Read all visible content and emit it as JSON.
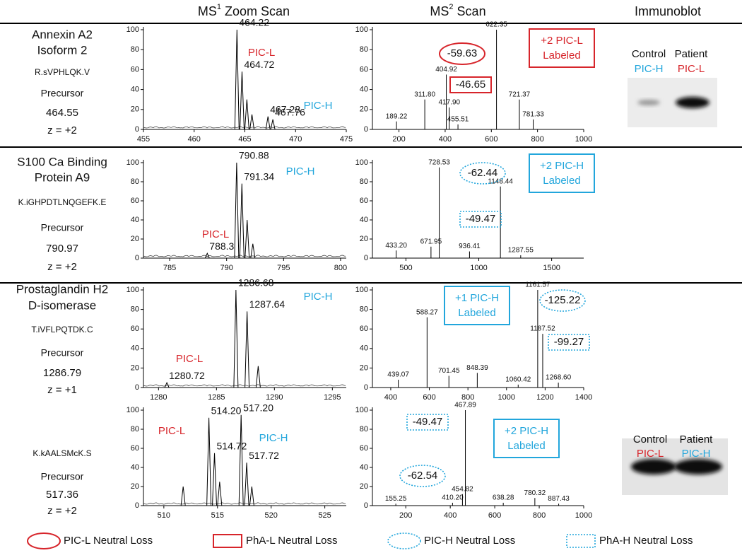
{
  "headers": [
    {
      "text": "MS",
      "sup": "1",
      "rest": "Zoom Scan"
    },
    {
      "text": "MS",
      "sup": "2",
      "rest": "Scan"
    },
    {
      "text": "Immunoblot"
    }
  ],
  "rows": [
    {
      "protein": [
        "Annexin A2",
        "Isoform 2"
      ],
      "peptide": "R.sVPHLQK.V",
      "precursor_label": "Precursor",
      "precursor": "464.55",
      "charge": "z = +2"
    },
    {
      "protein": [
        "S100 Ca Binding",
        "Protein A9"
      ],
      "peptide": "K.iGHPDTLNQGEFK.E",
      "precursor_label": "Precursor",
      "precursor": "790.97",
      "charge": "z = +2"
    },
    {
      "protein": [
        "Prostaglandin H2",
        "D-isomerase"
      ],
      "peptide": "T.iVFLPQTDK.C",
      "precursor_label": "Precursor",
      "precursor": "1286.79",
      "charge": "z = +1"
    },
    {
      "protein": [],
      "peptide": "K.kAALSMcK.S",
      "precursor_label": "Precursor",
      "precursor": "517.36",
      "charge": "z = +2"
    }
  ],
  "immunoblots": [
    {
      "labels": [
        "Control",
        "Patient"
      ],
      "groups": [
        {
          "text": "PIC-H",
          "color": "#22a6dc"
        },
        {
          "text": "PIC-L",
          "color": "#d7252b"
        }
      ]
    },
    {
      "labels": [
        "Control",
        "Patient"
      ],
      "groups": [
        {
          "text": "PIC-L",
          "color": "#d7252b"
        },
        {
          "text": "PIC-H",
          "color": "#22a6dc"
        }
      ]
    }
  ],
  "legend": [
    {
      "label": "PIC-L Neutral Loss",
      "shape": "ellipse",
      "color": "#d7252b"
    },
    {
      "label": "PhA-L Neutral Loss",
      "shape": "rect",
      "color": "#d7252b"
    },
    {
      "label": "PIC-H Neutral Loss",
      "shape": "dotted-ellipse",
      "color": "#22a6dc"
    },
    {
      "label": "PhA-H Neutral Loss",
      "shape": "dotted-rect",
      "color": "#22a6dc"
    }
  ],
  "chart_data": [
    {
      "type": "profile",
      "color": "#000000",
      "xlim": [
        455,
        475
      ],
      "xticks": [
        455,
        460,
        465,
        470,
        475
      ],
      "ylim": [
        0,
        100
      ],
      "yticks": [
        0,
        20,
        40,
        60,
        80,
        100
      ],
      "x": [
        464.22,
        464.72,
        465.2,
        465.7,
        467.28,
        467.76
      ],
      "values": [
        100,
        58,
        30,
        15,
        13,
        10
      ],
      "peak_labels": [
        "464.22",
        "464.72",
        null,
        null,
        "467.28",
        "467.76"
      ],
      "annotations": [
        {
          "text": "PIC-L",
          "color": "#d7252b",
          "shape": "none"
        },
        {
          "text": "PIC-H",
          "color": "#22a6dc",
          "shape": "none"
        }
      ]
    },
    {
      "type": "centroid",
      "color": "#000000",
      "xlim": [
        85,
        1000
      ],
      "xticks": [
        200,
        400,
        600,
        800,
        1000
      ],
      "ylim": [
        0,
        100
      ],
      "yticks": [
        0,
        20,
        40,
        60,
        80,
        100
      ],
      "x": [
        189.22,
        311.8,
        404.92,
        417.9,
        455.51,
        622.35,
        721.37,
        781.33
      ],
      "values": [
        8,
        30,
        55,
        22,
        5,
        100,
        30,
        10
      ],
      "peak_labels": [
        "189.22",
        "311.80",
        "404.92",
        "417.90",
        "455.51",
        "622.35",
        "721.37",
        "781.33"
      ],
      "annotations": [
        {
          "text": "-59.63",
          "color": "#d7252b",
          "shape": "ellipse"
        },
        {
          "text": "-46.65",
          "color": "#d7252b",
          "shape": "rect"
        },
        {
          "lines": [
            "+2 PIC-L",
            "Labeled"
          ],
          "color": "#d7252b",
          "shape": "box"
        }
      ]
    },
    {
      "type": "profile",
      "color": "#000000",
      "xlim": [
        782.7,
        800.5
      ],
      "xticks": [
        785,
        790,
        795,
        800
      ],
      "ylim": [
        0,
        100
      ],
      "yticks": [
        0,
        20,
        40,
        60,
        80,
        100
      ],
      "x": [
        788.3,
        790.88,
        791.34,
        791.8,
        792.3
      ],
      "values": [
        5,
        100,
        78,
        40,
        15
      ],
      "peak_labels": [
        "788.3",
        "790.88",
        "791.34",
        null,
        null
      ],
      "annotations": [
        {
          "text": "PIC-H",
          "color": "#22a6dc",
          "shape": "none"
        },
        {
          "text": "PIC-L",
          "color": "#d7252b",
          "shape": "none"
        }
      ]
    },
    {
      "type": "centroid",
      "color": "#000000",
      "xlim": [
        270,
        1720
      ],
      "xticks": [
        500,
        1000,
        1500
      ],
      "ylim": [
        0,
        100
      ],
      "yticks": [
        0,
        20,
        40,
        60,
        80,
        100
      ],
      "x": [
        433.2,
        671.95,
        728.53,
        936.41,
        1148.44,
        1287.55
      ],
      "values": [
        8,
        12,
        95,
        7,
        75,
        3
      ],
      "peak_labels": [
        "433.20",
        "671.95",
        "728.53",
        "936.41",
        "1148.44",
        "1287.55"
      ],
      "annotations": [
        {
          "text": "-62.44",
          "color": "#22a6dc",
          "shape": "dotted-ellipse"
        },
        {
          "text": "-49.47",
          "color": "#22a6dc",
          "shape": "dotted-rect"
        },
        {
          "lines": [
            "+2 PIC-H",
            "Labeled"
          ],
          "color": "#22a6dc",
          "shape": "box"
        }
      ]
    },
    {
      "type": "profile",
      "color": "#000000",
      "xlim": [
        1278.7,
        1296.2
      ],
      "xticks": [
        1280,
        1285,
        1290,
        1295
      ],
      "ylim": [
        0,
        100
      ],
      "yticks": [
        0,
        20,
        40,
        60,
        80,
        100
      ],
      "x": [
        1280.72,
        1286.68,
        1287.64,
        1288.6
      ],
      "values": [
        5,
        100,
        78,
        22
      ],
      "peak_labels": [
        "1280.72",
        "1286.68",
        "1287.64",
        null
      ],
      "annotations": [
        {
          "text": "PIC-H",
          "color": "#22a6dc",
          "shape": "none"
        },
        {
          "text": "PIC-L",
          "color": "#d7252b",
          "shape": "none"
        }
      ]
    },
    {
      "type": "centroid",
      "color": "#000000",
      "xlim": [
        305,
        1400
      ],
      "xticks": [
        400,
        600,
        800,
        1000,
        1200,
        1400
      ],
      "ylim": [
        0,
        100
      ],
      "yticks": [
        0,
        20,
        40,
        60,
        80,
        100
      ],
      "x": [
        439.07,
        588.27,
        701.45,
        848.39,
        1060.42,
        1161.57,
        1187.52,
        1268.6
      ],
      "values": [
        8,
        72,
        12,
        15,
        3,
        100,
        55,
        5
      ],
      "peak_labels": [
        "439.07",
        "588.27",
        "701.45",
        "848.39",
        "1060.42",
        "1161.57",
        "1187.52",
        "1268.60"
      ],
      "annotations": [
        {
          "lines": [
            "+1 PIC-H",
            "Labeled"
          ],
          "color": "#22a6dc",
          "shape": "box"
        },
        {
          "text": "-125.22",
          "color": "#22a6dc",
          "shape": "dotted-ellipse"
        },
        {
          "text": "-99.27",
          "color": "#22a6dc",
          "shape": "dotted-rect"
        }
      ]
    },
    {
      "type": "profile",
      "color": "#000000",
      "xlim": [
        508.1,
        527
      ],
      "xticks": [
        510,
        515,
        520,
        525
      ],
      "ylim": [
        0,
        100
      ],
      "yticks": [
        0,
        20,
        40,
        60,
        80,
        100
      ],
      "x": [
        511.8,
        514.2,
        514.72,
        515.2,
        517.2,
        517.72,
        518.2
      ],
      "values": [
        20,
        92,
        55,
        25,
        95,
        45,
        20
      ],
      "peak_labels": [
        null,
        "514.20",
        "514.72",
        null,
        "517.20",
        "517.72",
        null
      ],
      "annotations": [
        {
          "text": "PIC-L",
          "color": "#d7252b",
          "shape": "none"
        },
        {
          "text": "PIC-H",
          "color": "#22a6dc",
          "shape": "none"
        }
      ]
    },
    {
      "type": "centroid",
      "color": "#000000",
      "xlim": [
        50,
        1000
      ],
      "xticks": [
        200,
        400,
        600,
        800,
        1000
      ],
      "ylim": [
        0,
        100
      ],
      "yticks": [
        0,
        20,
        40,
        60,
        80,
        100
      ],
      "x": [
        155.25,
        410.2,
        454.82,
        467.89,
        638.28,
        780.32,
        887.43
      ],
      "values": [
        2,
        3,
        12,
        100,
        3,
        8,
        2
      ],
      "peak_labels": [
        "155.25",
        "410.20",
        "454.82",
        "467.89",
        "638.28",
        "780.32",
        "887.43"
      ],
      "annotations": [
        {
          "text": "-49.47",
          "color": "#22a6dc",
          "shape": "dotted-rect"
        },
        {
          "text": "-62.54",
          "color": "#22a6dc",
          "shape": "dotted-ellipse"
        },
        {
          "lines": [
            "+2 PIC-H",
            "Labeled"
          ],
          "color": "#22a6dc",
          "shape": "box"
        }
      ]
    }
  ]
}
